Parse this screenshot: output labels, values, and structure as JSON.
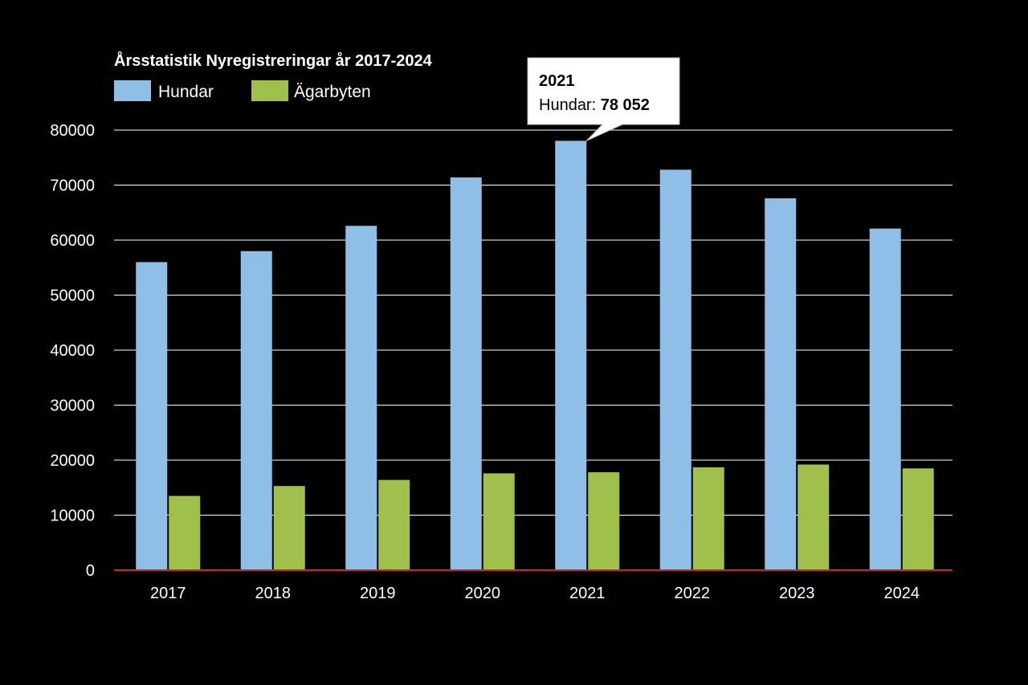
{
  "chart_data": {
    "type": "bar",
    "title": "Årsstatistik Nyregistreringar år 2017-2024",
    "categories": [
      "2017",
      "2018",
      "2019",
      "2020",
      "2021",
      "2022",
      "2023",
      "2024"
    ],
    "series": [
      {
        "name": "Hundar",
        "color": "#8fbfe6",
        "values": [
          56000,
          58000,
          62600,
          71400,
          78052,
          72800,
          67600,
          62100
        ]
      },
      {
        "name": "Ägarbyten",
        "color": "#9fc04a",
        "values": [
          13500,
          15300,
          16400,
          17600,
          17800,
          18700,
          19200,
          18500
        ]
      }
    ],
    "ylim": [
      0,
      80000
    ],
    "yticks": [
      "0",
      "10000",
      "20000",
      "30000",
      "40000",
      "50000",
      "60000",
      "70000",
      "80000"
    ],
    "grid": true,
    "legend_position": "top-left",
    "axis_line_color": "#cc2a1a",
    "background": "#000000",
    "tooltip": {
      "category_index": 4,
      "title": "2021",
      "label": "Hundar: ",
      "value": "78 052"
    }
  }
}
